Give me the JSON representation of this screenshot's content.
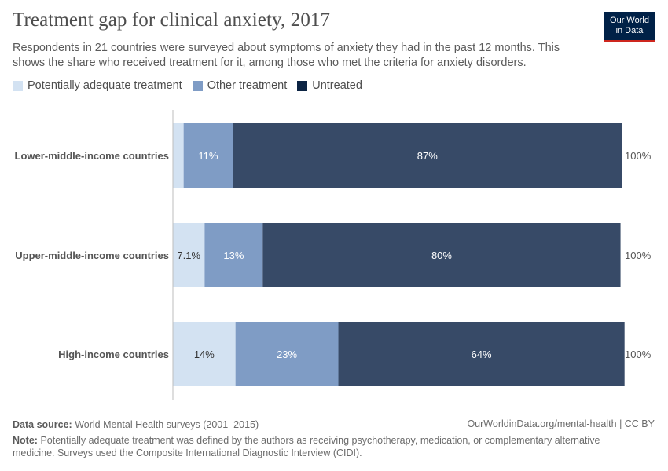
{
  "header": {
    "title": "Treatment gap for clinical anxiety, 2017",
    "subtitle": "Respondents in 21 countries were surveyed about symptoms of anxiety they had in the past 12 months. This shows the share who received treatment for it, among those who met the criteria for anxiety disorders.",
    "logo_line1": "Our World",
    "logo_line2": "in Data"
  },
  "legend": {
    "items": [
      {
        "label": "Potentially adequate treatment",
        "color": "#d3e2f2"
      },
      {
        "label": "Other treatment",
        "color": "#7f9cc5"
      },
      {
        "label": "Untreated",
        "color": "#0c2443"
      }
    ]
  },
  "chart_data": {
    "type": "bar",
    "orientation": "horizontal",
    "stacked": true,
    "categories": [
      "Lower-middle-income countries",
      "Upper-middle-income countries",
      "High-income countries"
    ],
    "series": [
      {
        "name": "Potentially adequate treatment",
        "values": [
          2.4,
          7.1,
          14
        ],
        "labels": [
          "",
          "7.1%",
          "14%"
        ],
        "color": "#d3e2f2",
        "label_color": "#333333"
      },
      {
        "name": "Other treatment",
        "values": [
          11,
          13,
          23
        ],
        "labels": [
          "11%",
          "13%",
          "23%"
        ],
        "color": "#7f9cc5",
        "label_color": "#ffffff"
      },
      {
        "name": "Untreated",
        "values": [
          87,
          80,
          64
        ],
        "labels": [
          "87%",
          "80%",
          "64%"
        ],
        "color": "#374a67",
        "label_color": "#ffffff"
      }
    ],
    "totals": [
      "100%",
      "100%",
      "100%"
    ],
    "xlim": [
      0,
      100
    ],
    "grid": false,
    "legend_position": "top-left"
  },
  "footer": {
    "source_label": "Data source:",
    "source_text": "World Mental Health surveys (2001–2015)",
    "url_text": "OurWorldinData.org/mental-health | CC BY",
    "note_label": "Note:",
    "note_text": "Potentially adequate treatment was defined by the authors as receiving psychotherapy, medication, or complementary alternative medicine. Surveys used the Composite International Diagnostic Interview (CIDI)."
  }
}
